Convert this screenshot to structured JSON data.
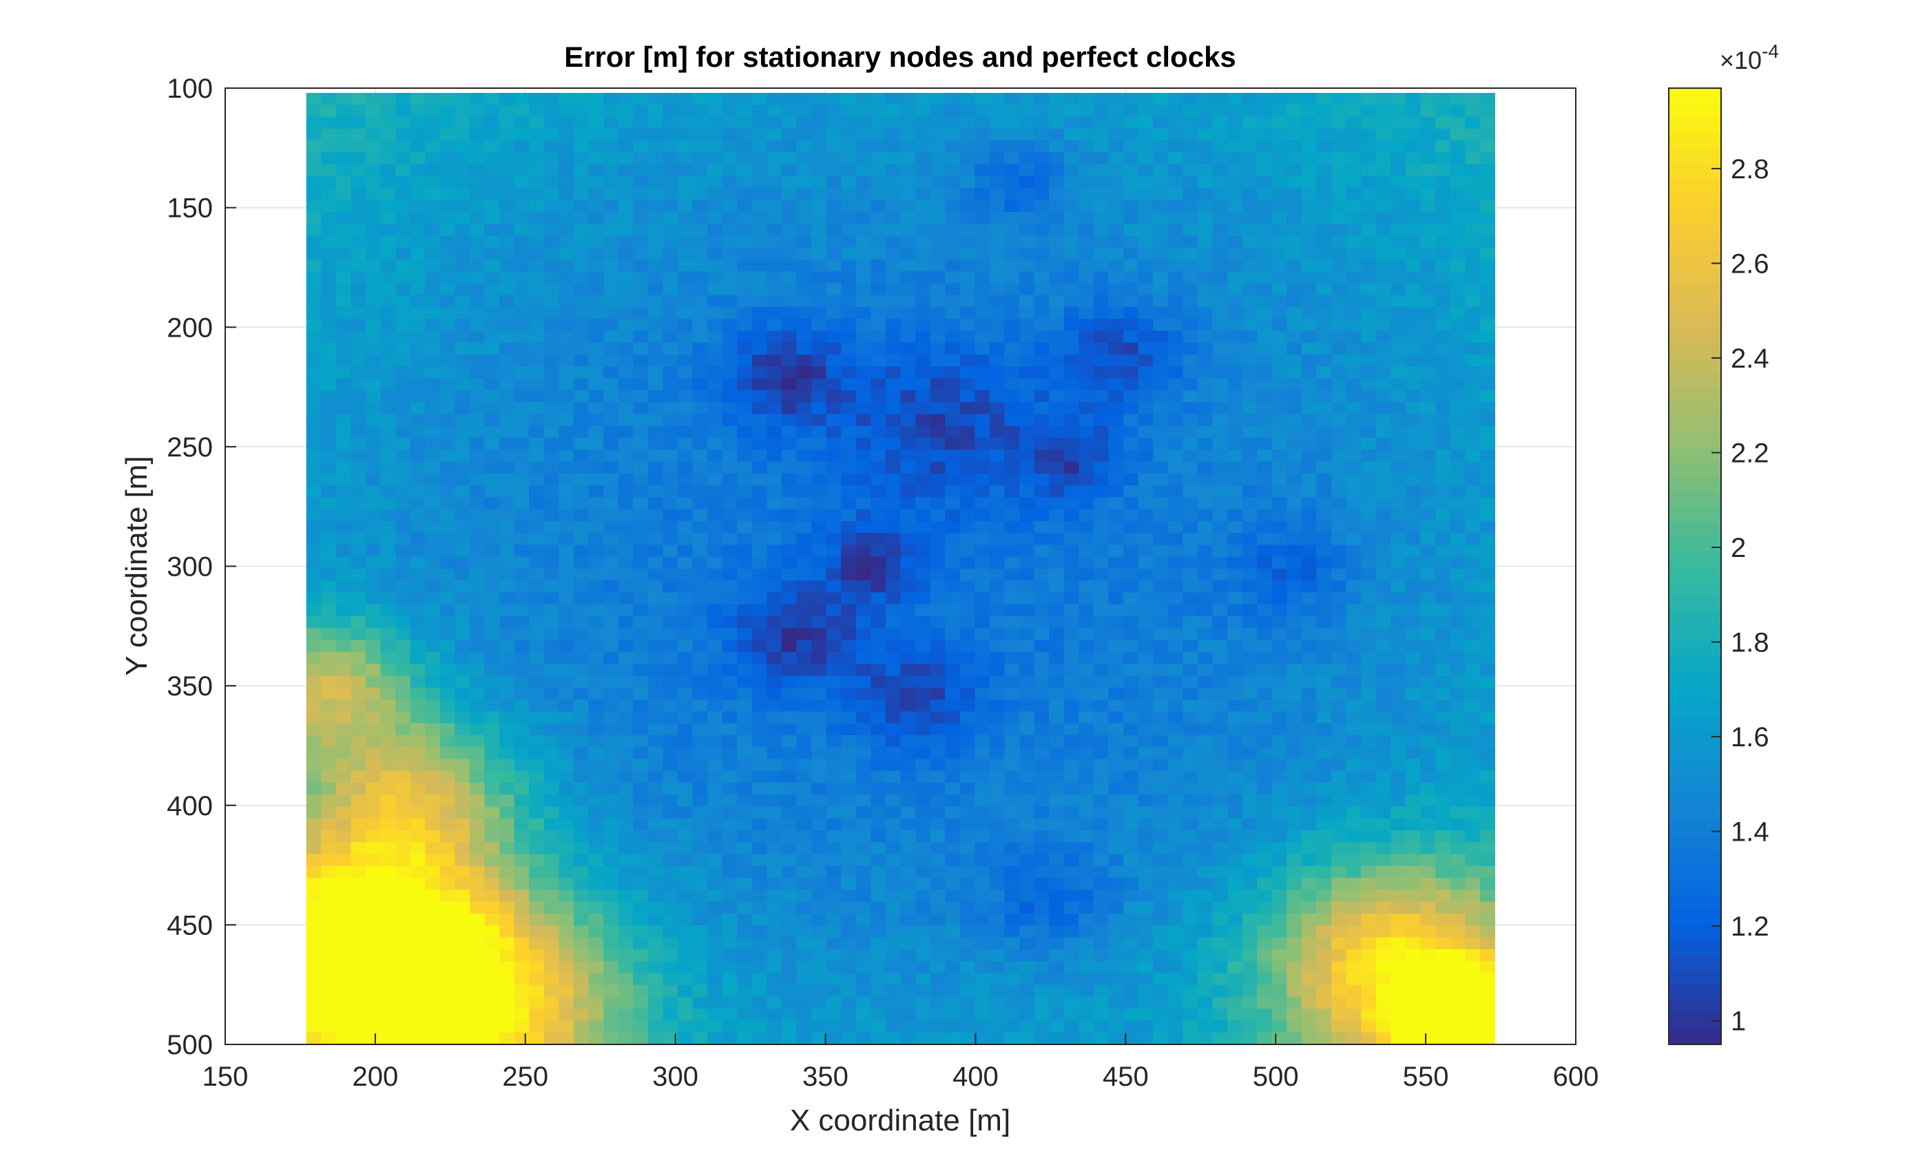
{
  "chart_data": {
    "type": "heatmap",
    "title": "Error [m] for stationary nodes and perfect clocks",
    "xlabel": "X coordinate [m]",
    "ylabel": "Y coordinate [m]",
    "xlim": [
      150,
      600
    ],
    "ylim": [
      100,
      500
    ],
    "y_direction": "reverse",
    "grid": true,
    "x_ticks": [
      150,
      200,
      250,
      300,
      350,
      400,
      450,
      500,
      550,
      600
    ],
    "y_ticks": [
      100,
      150,
      200,
      250,
      300,
      350,
      400,
      450,
      500
    ],
    "x_tick_labels": [
      "150",
      "200",
      "250",
      "300",
      "350",
      "400",
      "450",
      "500",
      "550",
      "600"
    ],
    "y_tick_labels": [
      "100",
      "150",
      "200",
      "250",
      "300",
      "350",
      "400",
      "450",
      "500"
    ],
    "data_extent": {
      "x": [
        177,
        573
      ],
      "y": [
        102,
        500
      ]
    },
    "grid_resolution": {
      "nx": 80,
      "ny": 80
    },
    "colorbar": {
      "range": [
        9.5e-05,
        0.000297
      ],
      "ticks": [
        0.0001,
        0.00012,
        0.00014,
        0.00016,
        0.00018,
        0.0002,
        0.00022,
        0.00024,
        0.00026,
        0.00028
      ],
      "tick_labels": [
        "1",
        "1.2",
        "1.4",
        "1.6",
        "1.8",
        "2",
        "2.2",
        "2.4",
        "2.6",
        "2.8"
      ],
      "exponent_prefix": "×10",
      "exponent": "-4",
      "colormap": "parula",
      "colormap_stops": [
        "#352a87",
        "#0363e1",
        "#1485d4",
        "#06a7c6",
        "#38b99e",
        "#92bf73",
        "#d9ba56",
        "#fcce2e",
        "#f9fb0e"
      ]
    },
    "features": {
      "base_value": 0.000135,
      "hotspots": [
        {
          "x": 190,
          "y": 460,
          "value": 0.000275,
          "spread": 30
        },
        {
          "x": 232,
          "y": 482,
          "value": 0.00026,
          "spread": 35
        },
        {
          "x": 212,
          "y": 398,
          "value": 0.00022,
          "spread": 25
        },
        {
          "x": 540,
          "y": 468,
          "value": 0.000255,
          "spread": 30
        },
        {
          "x": 565,
          "y": 492,
          "value": 0.000295,
          "spread": 15
        },
        {
          "x": 185,
          "y": 350,
          "value": 0.00021,
          "spread": 20
        }
      ],
      "cold_spots": [
        {
          "x": 335,
          "y": 220,
          "value": 9.7e-05,
          "spread": 15
        },
        {
          "x": 340,
          "y": 330,
          "value": 0.0001,
          "spread": 15
        },
        {
          "x": 365,
          "y": 300,
          "value": 0.000102,
          "spread": 12
        },
        {
          "x": 448,
          "y": 212,
          "value": 0.000102,
          "spread": 15
        },
        {
          "x": 432,
          "y": 255,
          "value": 0.000105,
          "spread": 12
        },
        {
          "x": 388,
          "y": 240,
          "value": 0.000105,
          "spread": 25
        },
        {
          "x": 380,
          "y": 355,
          "value": 0.000105,
          "spread": 15
        },
        {
          "x": 425,
          "y": 440,
          "value": 0.00011,
          "spread": 15
        },
        {
          "x": 505,
          "y": 302,
          "value": 0.000112,
          "spread": 15
        },
        {
          "x": 415,
          "y": 140,
          "value": 0.000108,
          "spread": 12
        }
      ]
    }
  }
}
